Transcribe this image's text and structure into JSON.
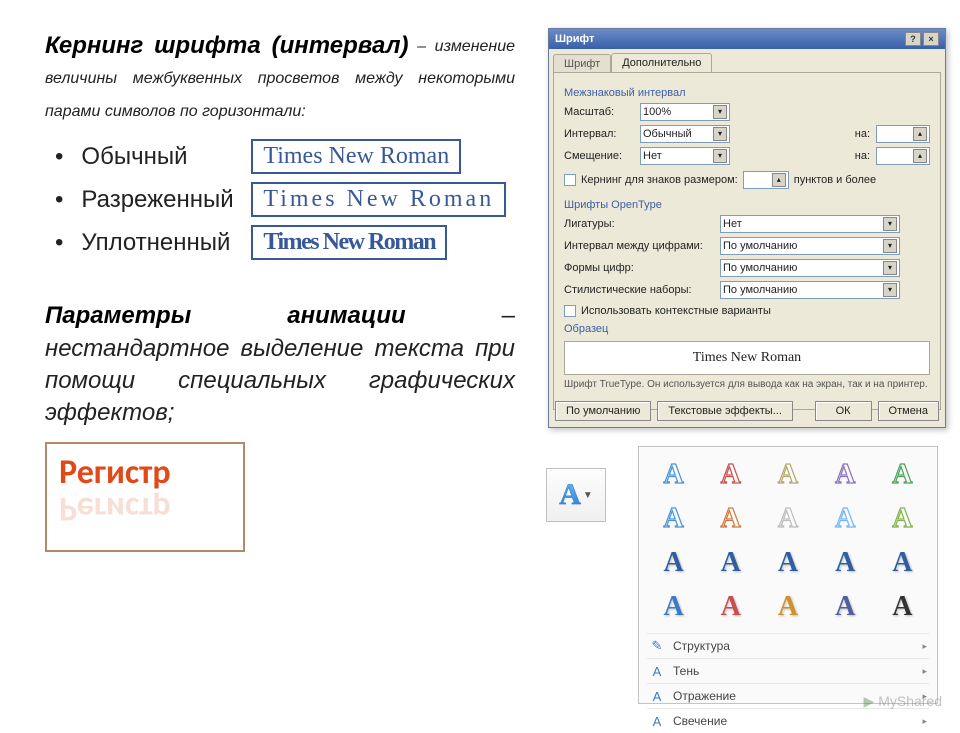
{
  "slide": {
    "kerning_title": "Кернинг шрифта (интервал)",
    "kerning_desc": " – изменение величины межбуквенных просветов между некоторыми парами символов по горизонтали:",
    "items": [
      "Обычный",
      "Разреженный",
      "Уплотненный"
    ],
    "sample_text": "Times New Roman",
    "sample_color": "#385999",
    "anim_title": "Параметры анимации",
    "anim_desc": " – нестандартное выделение текста при помощи специальных графических эффектов;",
    "register_label": "Регистр",
    "register_color": "#e0491a"
  },
  "dialog": {
    "title": "Шрифт",
    "tabs": [
      "Шрифт",
      "Дополнительно"
    ],
    "active_tab": 1,
    "group1_title": "Межзнаковый интервал",
    "scale_label": "Масштаб:",
    "scale_value": "100%",
    "spacing_label": "Интервал:",
    "spacing_value": "Обычный",
    "spacing_by_label": "на:",
    "position_label": "Смещение:",
    "position_value": "Нет",
    "position_by_label": "на:",
    "kerning_check": "Кернинг для знаков размером:",
    "kerning_suffix": "пунктов и более",
    "group2_title": "Шрифты OpenType",
    "ligatures_label": "Лигатуры:",
    "ligatures_value": "Нет",
    "num_spacing_label": "Интервал между цифрами:",
    "num_spacing_value": "По умолчанию",
    "num_forms_label": "Формы цифр:",
    "num_forms_value": "По умолчанию",
    "stylistic_label": "Стилистические наборы:",
    "stylistic_value": "По умолчанию",
    "contextual_check": "Использовать контекстные варианты",
    "preview_title": "Образец",
    "preview_text": "Times New Roman",
    "hint": "Шрифт TrueType. Он используется для вывода как на экран, так и на принтер.",
    "buttons": {
      "default": "По умолчанию",
      "text_effects": "Текстовые эффекты...",
      "ok": "ОК",
      "cancel": "Отмена"
    }
  },
  "fx_gallery": {
    "button_glyph": "A",
    "grid_glyph": "A",
    "grid_colors": [
      "#4a94d6",
      "#c94f4f",
      "#b5a96a",
      "#8a72c0",
      "#4fa35a",
      "#4a94d6",
      "#d07b3c",
      "#bdbdbd",
      "#6fb8f5",
      "#86b24a",
      "#2f5fa0",
      "#2f5fa0",
      "#2f5fa0",
      "#2f5fa0",
      "#2f5fa0",
      "#3a7bc8",
      "#c94f4f",
      "#d0902a",
      "#4f5fa0",
      "#333333"
    ],
    "menu": [
      "Структура",
      "Тень",
      "Отражение",
      "Свечение"
    ]
  },
  "watermark": "MyShared"
}
